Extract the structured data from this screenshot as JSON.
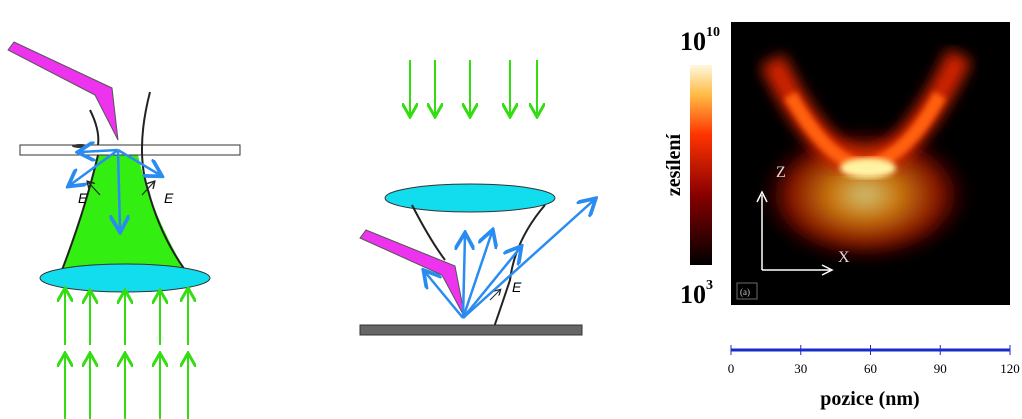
{
  "left_diagram": {
    "field_labels": [
      "E",
      "E"
    ]
  },
  "middle_diagram": {
    "field_label": "E"
  },
  "plot": {
    "colorbar": {
      "top": {
        "base": "10",
        "exp": "10"
      },
      "bottom": {
        "base": "10",
        "exp": "3"
      },
      "label": "zesílení"
    },
    "axes_labels": {
      "z": "Z",
      "x": "X"
    },
    "panel_label": "(a)",
    "x_axis": {
      "xlim": [
        0,
        120
      ],
      "xticks": [
        0,
        30,
        60,
        90,
        120
      ],
      "label": "pozice (nm)"
    }
  }
}
